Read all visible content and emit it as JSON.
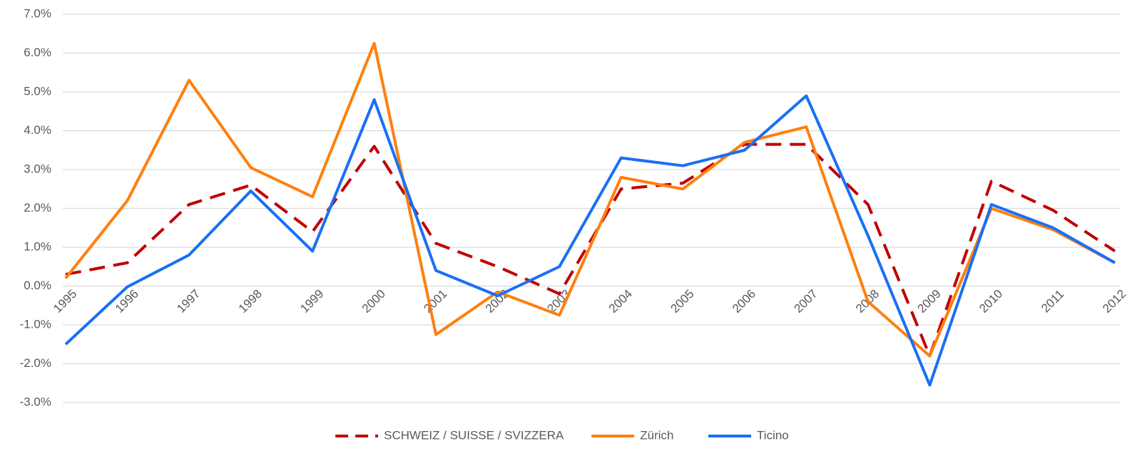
{
  "chart_data": {
    "type": "line",
    "categories": [
      "1995",
      "1996",
      "1997",
      "1998",
      "1999",
      "2000",
      "2001",
      "2002",
      "2003",
      "2004",
      "2005",
      "2006",
      "2007",
      "2008",
      "2009",
      "2010",
      "2011",
      "2012"
    ],
    "series": [
      {
        "name": "SCHWEIZ / SUISSE / SVIZZERA",
        "color": "#c00000",
        "line_style": "dashed",
        "values": [
          0.3,
          0.6,
          2.1,
          2.6,
          1.4,
          3.6,
          1.1,
          0.5,
          -0.2,
          2.5,
          2.65,
          3.65,
          3.65,
          2.1,
          -1.8,
          2.7,
          1.95,
          0.9
        ]
      },
      {
        "name": "Zürich",
        "color": "#ff7f0e",
        "line_style": "solid",
        "values": [
          0.2,
          2.2,
          5.3,
          3.05,
          2.3,
          6.25,
          -1.25,
          -0.15,
          -0.75,
          2.8,
          2.5,
          3.7,
          4.1,
          -0.4,
          -1.8,
          2.0,
          1.45,
          0.6
        ]
      },
      {
        "name": "Ticino",
        "color": "#1a6ff5",
        "line_style": "solid",
        "values": [
          -1.5,
          -0.02,
          0.8,
          2.45,
          0.9,
          4.8,
          0.4,
          -0.25,
          0.5,
          3.3,
          3.1,
          3.5,
          4.9,
          1.3,
          -2.55,
          2.1,
          1.5,
          0.6
        ]
      }
    ],
    "ylim": [
      -3,
      7
    ],
    "yticks": [
      {
        "value": -3,
        "label": "-3.0%"
      },
      {
        "value": -2,
        "label": "-2.0%"
      },
      {
        "value": -1,
        "label": "-1.0%"
      },
      {
        "value": 0,
        "label": "0.0%"
      },
      {
        "value": 1,
        "label": "1.0%"
      },
      {
        "value": 2,
        "label": "2.0%"
      },
      {
        "value": 3,
        "label": "3.0%"
      },
      {
        "value": 4,
        "label": "4.0%"
      },
      {
        "value": 5,
        "label": "5.0%"
      },
      {
        "value": 6,
        "label": "6.0%"
      },
      {
        "value": 7,
        "label": "7.0%"
      }
    ],
    "grid": true,
    "legend": "bottom"
  }
}
